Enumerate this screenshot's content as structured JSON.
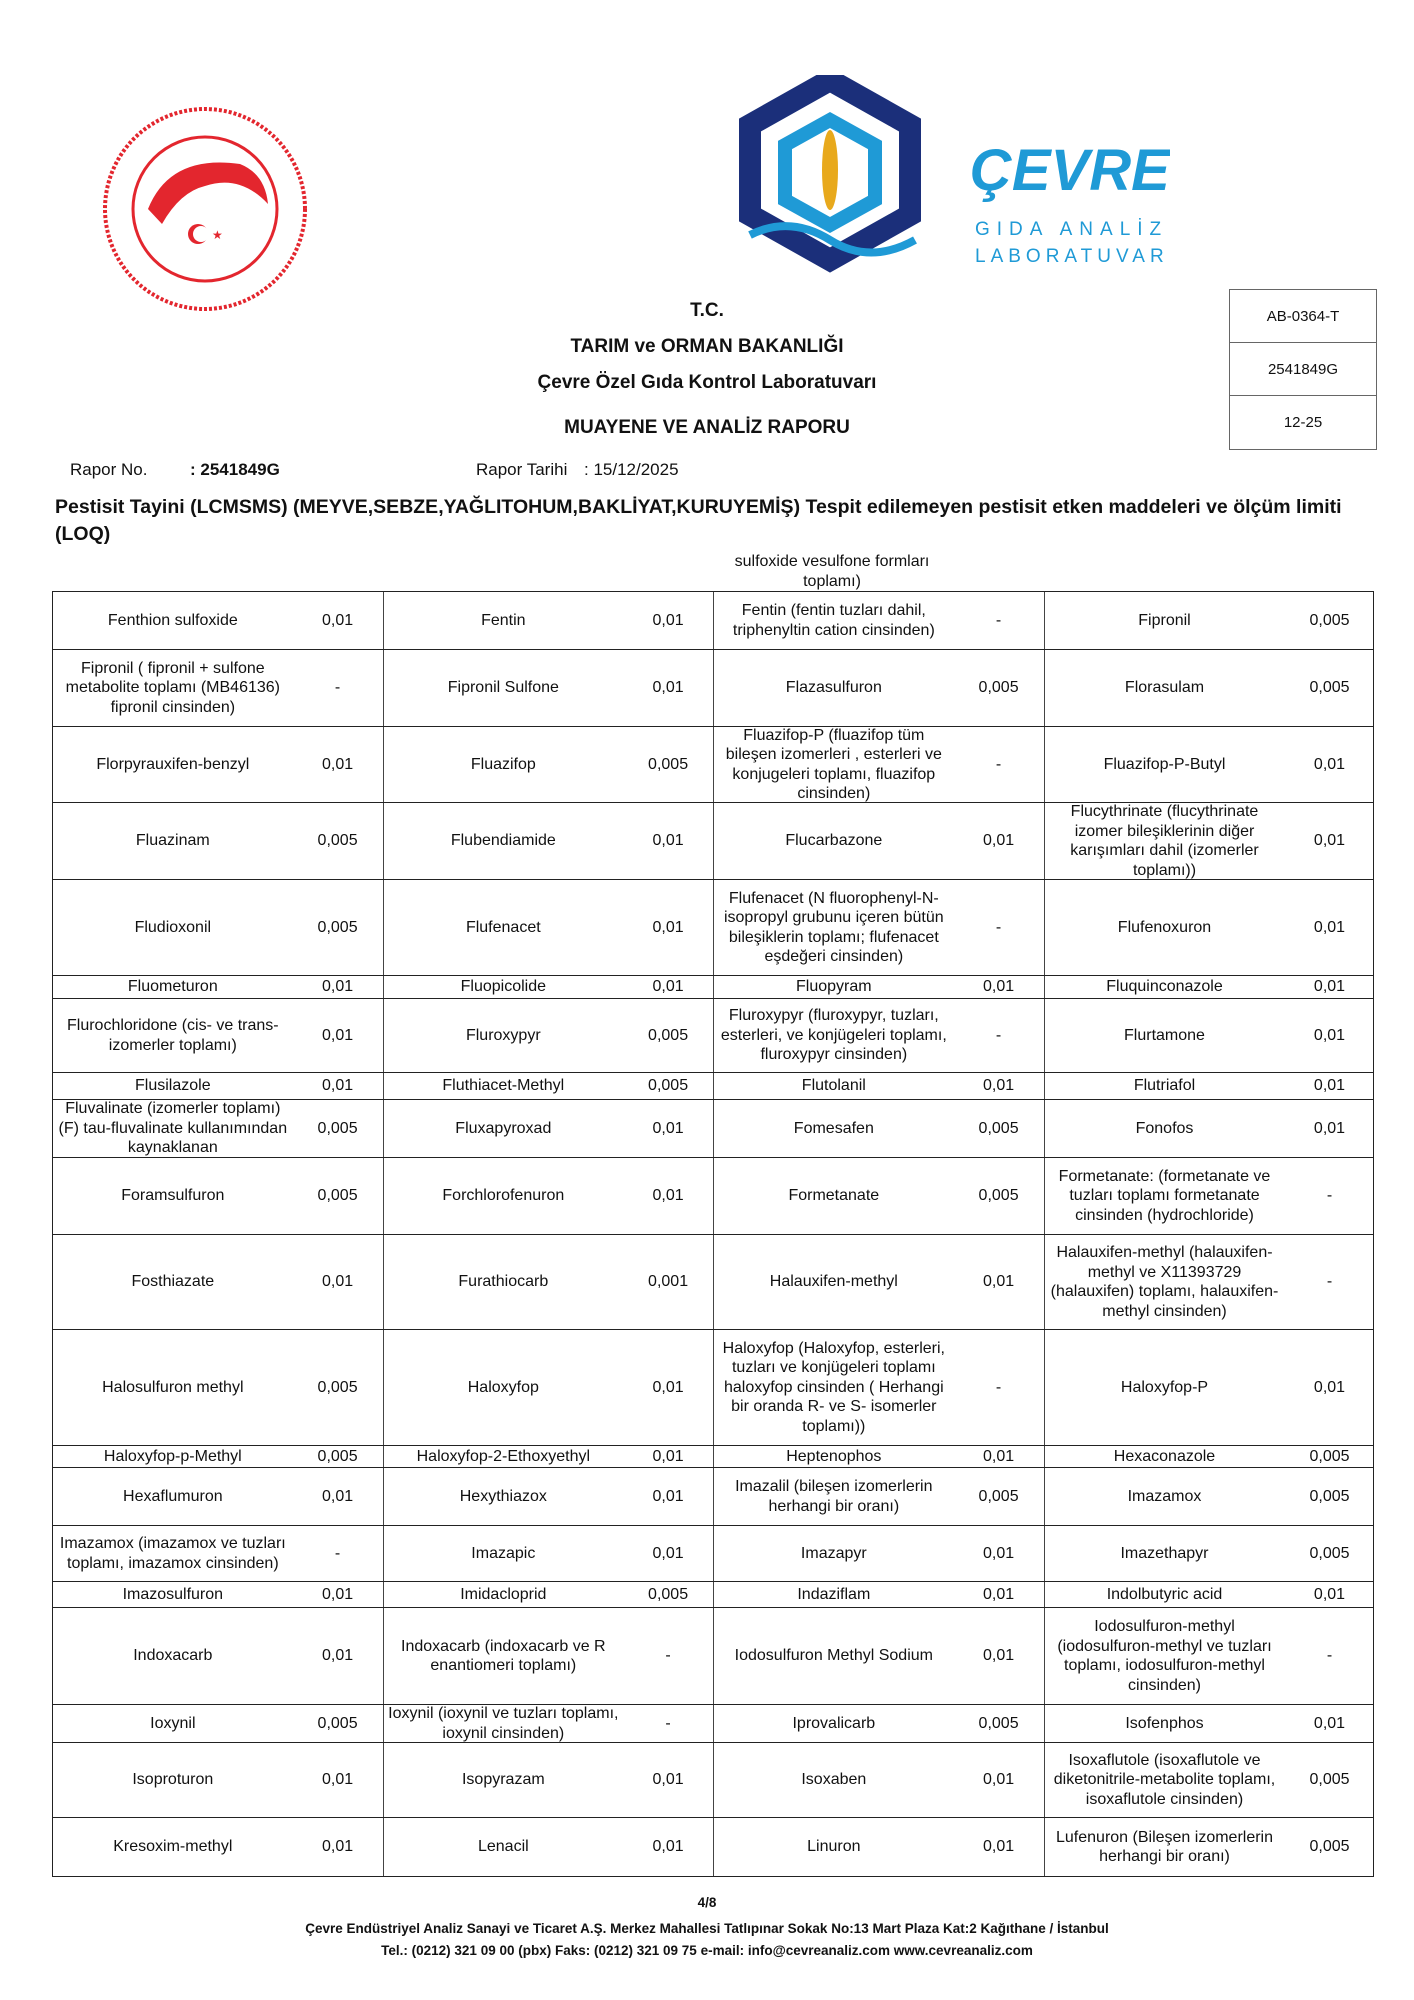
{
  "logos": {
    "ministry_seal": "TÜRKİYE CUMHURİYETİ TARIM VE ORMAN BAKANLIĞI",
    "lab_brand": "ÇEVRE",
    "lab_sub1": "GIDA ANALİZ",
    "lab_sub2": "LABORATUVARI",
    "colors": {
      "seal_red": "#e3262e",
      "brand_blue": "#1f9ad6",
      "brand_navy": "#1b2f7a",
      "wheat_gold": "#e8a91c"
    }
  },
  "header": {
    "line1": "T.C.",
    "line2": "TARIM ve ORMAN BAKANLIĞI",
    "line3": "Çevre Özel Gıda Kontrol Laboratuvarı",
    "line4": "MUAYENE VE ANALİZ RAPORU"
  },
  "refbox": [
    "AB-0364-T",
    "2541849G",
    "12-25"
  ],
  "meta": {
    "rapor_no_label": "Rapor No.",
    "rapor_no": ": 2541849G",
    "rapor_tarihi_label": "Rapor Tarihi",
    "rapor_tarihi": ": 15/12/2025"
  },
  "section_title": "Pestisit Tayini (LCMSMS) (MEYVE,SEBZE,YAĞLITOHUM,BAKLİYAT,KURUYEMİŞ) Tespit edilemeyen pestisit etken maddeleri ve ölçüm limiti (LOQ)",
  "overflow_text": "sulfoxide vesulfone formları toplamı)",
  "table": {
    "rows": [
      [
        [
          "Fenthion sulfoxide",
          "0,01"
        ],
        [
          "Fentin",
          "0,01"
        ],
        [
          "Fentin (fentin tuzları dahil, triphenyltin cation cinsinden)",
          "-"
        ],
        [
          "Fipronil",
          "0,005"
        ]
      ],
      [
        [
          "Fipronil ( fipronil + sulfone metabolite toplamı (MB46136) fipronil cinsinden)",
          "-"
        ],
        [
          "Fipronil Sulfone",
          "0,01"
        ],
        [
          "Flazasulfuron",
          "0,005"
        ],
        [
          "Florasulam",
          "0,005"
        ]
      ],
      [
        [
          "Florpyrauxifen-benzyl",
          "0,01"
        ],
        [
          "Fluazifop",
          "0,005"
        ],
        [
          "Fluazifop-P (fluazifop tüm bileşen izomerleri , esterleri ve konjugeleri toplamı, fluazifop cinsinden)",
          "-"
        ],
        [
          "Fluazifop-P-Butyl",
          "0,01"
        ]
      ],
      [
        [
          "Fluazinam",
          "0,005"
        ],
        [
          "Flubendiamide",
          "0,01"
        ],
        [
          "Flucarbazone",
          "0,01"
        ],
        [
          "Flucythrinate (flucythrinate izomer bileşiklerinin diğer karışımları dahil (izomerler toplamı))",
          "0,01"
        ]
      ],
      [
        [
          "Fludioxonil",
          "0,005"
        ],
        [
          "Flufenacet",
          "0,01"
        ],
        [
          "Flufenacet (N fluorophenyl-N-isopropyl grubunu içeren bütün bileşiklerin toplamı; flufenacet eşdeğeri cinsinden)",
          "-"
        ],
        [
          "Flufenoxuron",
          "0,01"
        ]
      ],
      [
        [
          "Fluometuron",
          "0,01"
        ],
        [
          "Fluopicolide",
          "0,01"
        ],
        [
          "Fluopyram",
          "0,01"
        ],
        [
          "Fluquinconazole",
          "0,01"
        ]
      ],
      [
        [
          "Flurochloridone (cis- ve trans- izomerler toplamı)",
          "0,01"
        ],
        [
          "Fluroxypyr",
          "0,005"
        ],
        [
          "Fluroxypyr (fluroxypyr, tuzları, esterleri, ve konjügeleri toplamı, fluroxypyr cinsinden)",
          "-"
        ],
        [
          "Flurtamone",
          "0,01"
        ]
      ],
      [
        [
          "Flusilazole",
          "0,01"
        ],
        [
          "Fluthiacet-Methyl",
          "0,005"
        ],
        [
          "Flutolanil",
          "0,01"
        ],
        [
          "Flutriafol",
          "0,01"
        ]
      ],
      [
        [
          "Fluvalinate (izomerler toplamı) (F) tau-fluvalinate kullanımından kaynaklanan",
          "0,005"
        ],
        [
          "Fluxapyroxad",
          "0,01"
        ],
        [
          "Fomesafen",
          "0,005"
        ],
        [
          "Fonofos",
          "0,01"
        ]
      ],
      [
        [
          "Foramsulfuron",
          "0,005"
        ],
        [
          "Forchlorofenuron",
          "0,01"
        ],
        [
          "Formetanate",
          "0,005"
        ],
        [
          "Formetanate: (formetanate ve tuzları toplamı formetanate cinsinden (hydrochloride)",
          "-"
        ]
      ],
      [
        [
          "Fosthiazate",
          "0,01"
        ],
        [
          "Furathiocarb",
          "0,001"
        ],
        [
          "Halauxifen-methyl",
          "0,01"
        ],
        [
          "Halauxifen-methyl (halauxifen-methyl ve X11393729 (halauxifen) toplamı, halauxifen-methyl cinsinden)",
          "-"
        ]
      ],
      [
        [
          "Halosulfuron methyl",
          "0,005"
        ],
        [
          "Haloxyfop",
          "0,01"
        ],
        [
          "Haloxyfop (Haloxyfop, esterleri, tuzları ve konjügeleri toplamı haloxyfop cinsinden ( Herhangi bir oranda R- ve S- isomerler toplamı))",
          "-"
        ],
        [
          "Haloxyfop-P",
          "0,01"
        ]
      ],
      [
        [
          "Haloxyfop-p-Methyl",
          "0,005"
        ],
        [
          "Haloxyfop-2-Ethoxyethyl",
          "0,01"
        ],
        [
          "Heptenophos",
          "0,01"
        ],
        [
          "Hexaconazole",
          "0,005"
        ]
      ],
      [
        [
          "Hexaflumuron",
          "0,01"
        ],
        [
          "Hexythiazox",
          "0,01"
        ],
        [
          "Imazalil (bileşen izomerlerin herhangi bir oranı)",
          "0,005"
        ],
        [
          "Imazamox",
          "0,005"
        ]
      ],
      [
        [
          "Imazamox (imazamox ve tuzları toplamı, imazamox cinsinden)",
          "-"
        ],
        [
          "Imazapic",
          "0,01"
        ],
        [
          "Imazapyr",
          "0,01"
        ],
        [
          "Imazethapyr",
          "0,005"
        ]
      ],
      [
        [
          "Imazosulfuron",
          "0,01"
        ],
        [
          "Imidacloprid",
          "0,005"
        ],
        [
          "Indaziflam",
          "0,01"
        ],
        [
          "Indolbutyric acid",
          "0,01"
        ]
      ],
      [
        [
          "Indoxacarb",
          "0,01"
        ],
        [
          "Indoxacarb (indoxacarb ve R enantiomeri toplamı)",
          "-"
        ],
        [
          "Iodosulfuron Methyl Sodium",
          "0,01"
        ],
        [
          "Iodosulfuron-methyl (iodosulfuron-methyl ve tuzları toplamı, iodosulfuron-methyl cinsinden)",
          "-"
        ]
      ],
      [
        [
          "Ioxynil",
          "0,005"
        ],
        [
          "Ioxynil (ioxynil ve tuzları toplamı, ioxynil cinsinden)",
          "-"
        ],
        [
          "Iprovalicarb",
          "0,005"
        ],
        [
          "Isofenphos",
          "0,01"
        ]
      ],
      [
        [
          "Isoproturon",
          "0,01"
        ],
        [
          "Isopyrazam",
          "0,01"
        ],
        [
          "Isoxaben",
          "0,01"
        ],
        [
          "Isoxaflutole (isoxaflutole ve diketonitrile-metabolite toplamı, isoxaflutole cinsinden)",
          "0,005"
        ]
      ],
      [
        [
          "Kresoxim-methyl",
          "0,01"
        ],
        [
          "Lenacil",
          "0,01"
        ],
        [
          "Linuron",
          "0,01"
        ],
        [
          "Lufenuron (Bileşen izomerlerin herhangi bir oranı)",
          "0,005"
        ]
      ]
    ]
  },
  "footer": {
    "page": "4/8",
    "address": "Çevre Endüstriyel Analiz Sanayi ve Ticaret A.Ş. Merkez Mahallesi Tatlıpınar Sokak No:13 Mart Plaza Kat:2 Kağıthane / İstanbul",
    "contact": "Tel.: (0212) 321 09 00 (pbx) Faks: (0212) 321 09 75 e-mail: info@cevreanaliz.com www.cevreanaliz.com"
  }
}
